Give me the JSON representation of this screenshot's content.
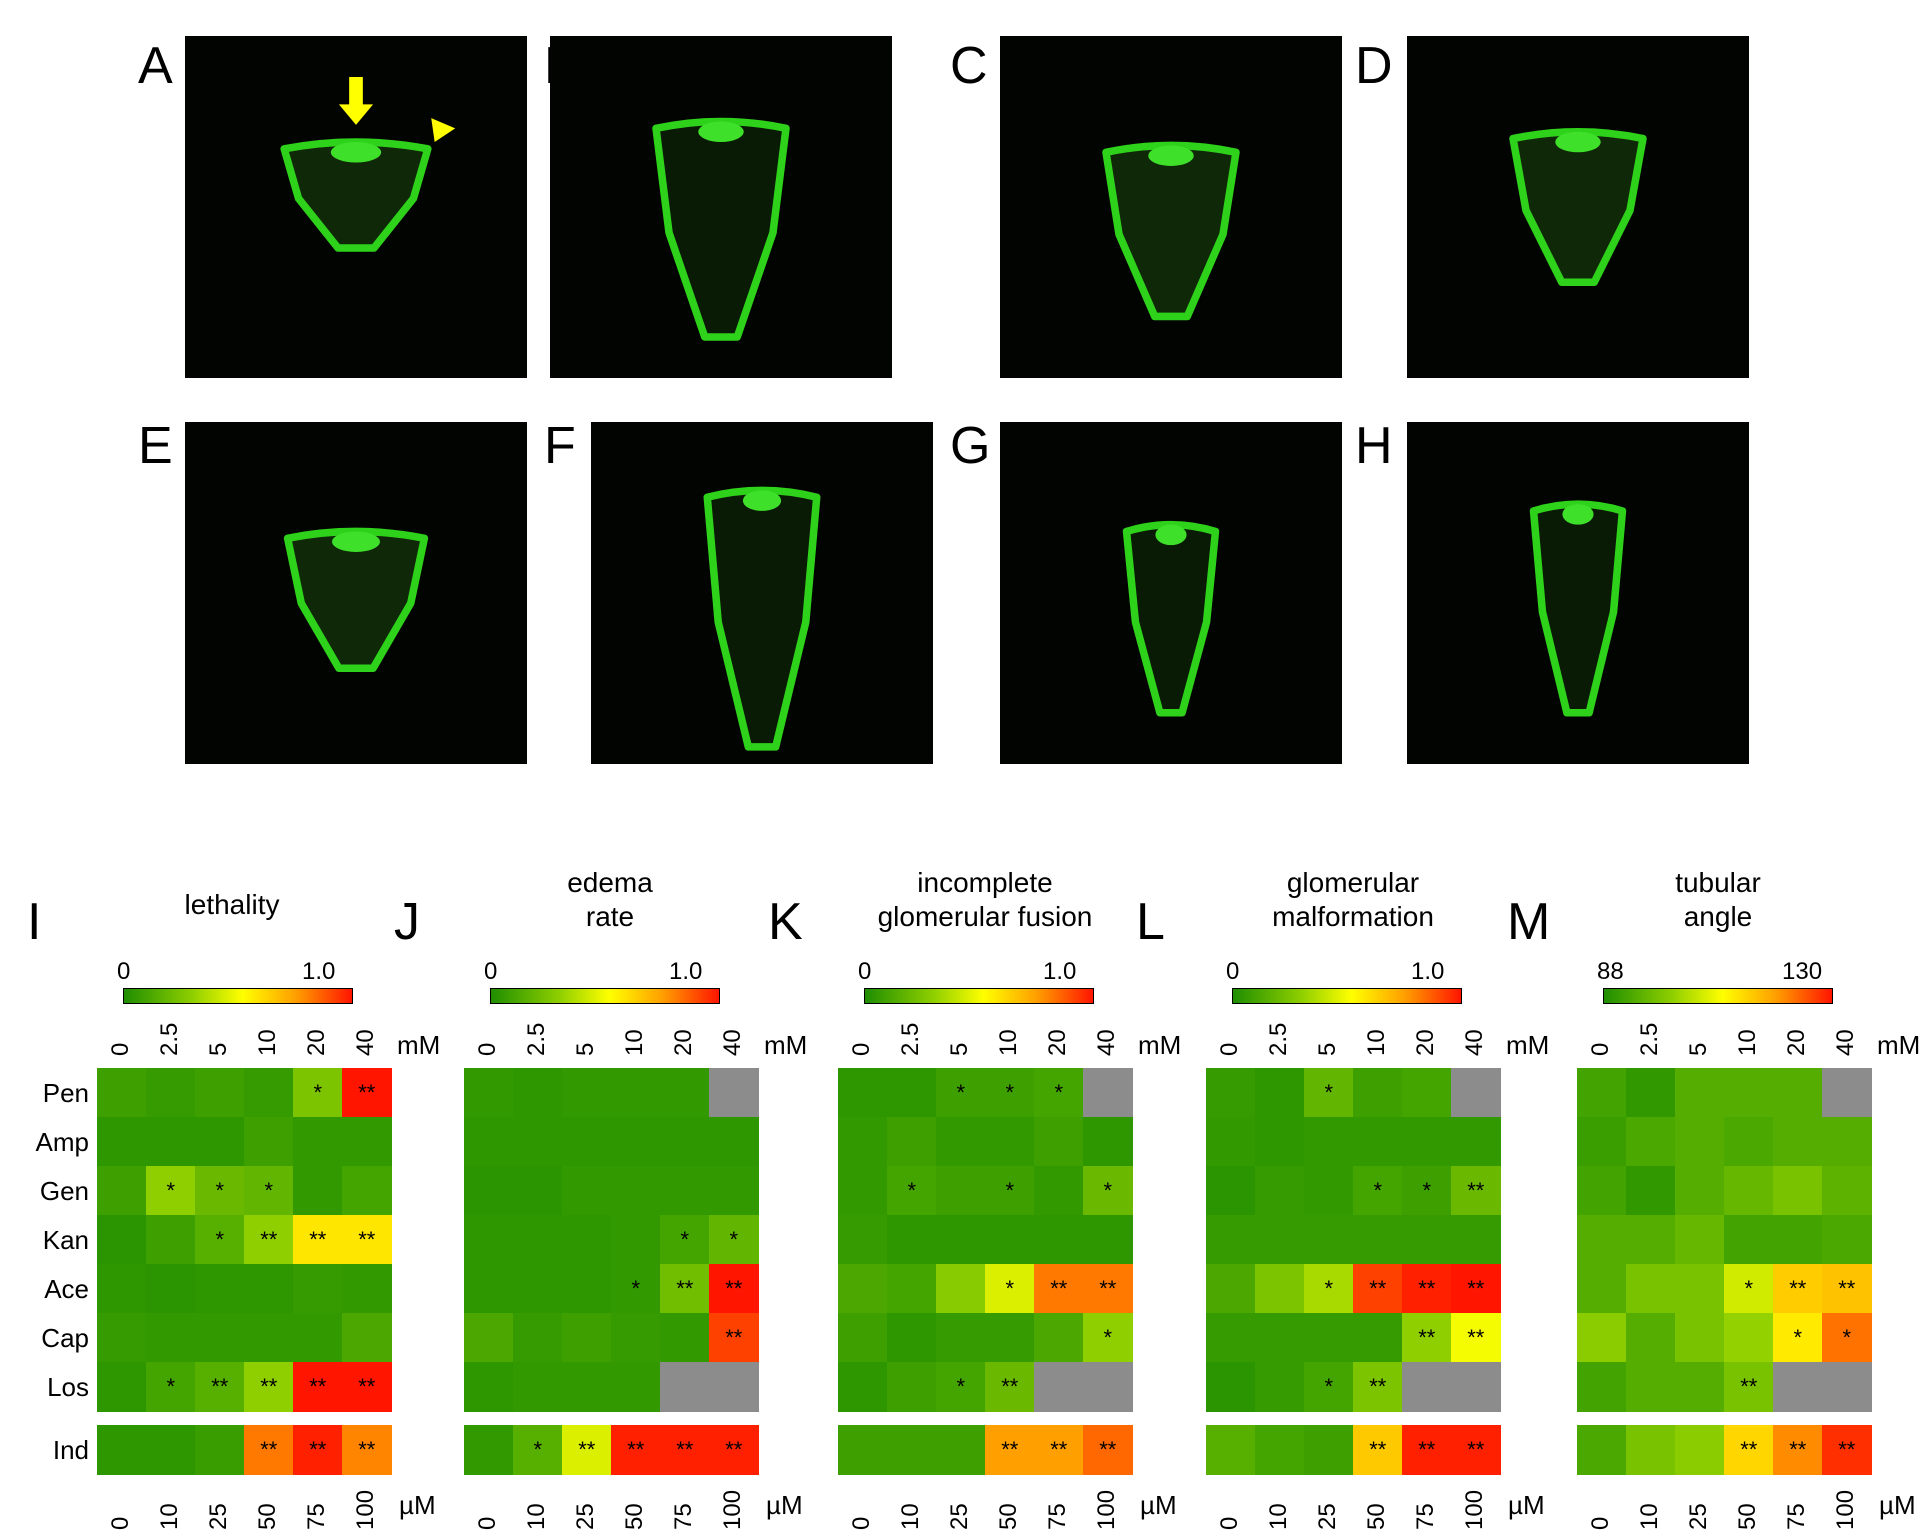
{
  "image_panels": [
    "A",
    "B",
    "C",
    "D",
    "E",
    "F",
    "G",
    "H"
  ],
  "heatmap_panels": [
    {
      "label": "I",
      "title_lines": [
        "lethality"
      ]
    },
    {
      "label": "J",
      "title_lines": [
        "edema",
        "rate"
      ]
    },
    {
      "label": "K",
      "title_lines": [
        "incomplete",
        "glomerular fusion"
      ]
    },
    {
      "label": "L",
      "title_lines": [
        "glomerular",
        "malformation"
      ]
    },
    {
      "label": "M",
      "title_lines": [
        "tubular",
        "angle"
      ]
    }
  ],
  "colorbar_labels": [
    [
      "0",
      "1.0"
    ],
    [
      "0",
      "1.0"
    ],
    [
      "0",
      "1.0"
    ],
    [
      "0",
      "1.0"
    ],
    [
      "88",
      "130"
    ]
  ],
  "colors": {
    "gray": "#8c8c8c",
    "background": "#ffffff",
    "gradient": [
      "#1f8e00",
      "#8fcf00",
      "#ffff00",
      "#ffa000",
      "#ff1500"
    ]
  },
  "arrow_color": "#ffff00",
  "mM_ticks": [
    "0",
    "2.5",
    "5",
    "10",
    "20",
    "40"
  ],
  "mM_unit": "mM",
  "uM_ticks": [
    "0",
    "10",
    "25",
    "50",
    "75",
    "100"
  ],
  "uM_unit": "µM",
  "rows": [
    "Pen",
    "Amp",
    "Gen",
    "Kan",
    "Ace",
    "Cap",
    "Los"
  ],
  "ind_row": "Ind",
  "chart_data": [
    {
      "type": "heatmap",
      "title": "lethality",
      "colorbar_range": [
        0,
        1.0
      ],
      "x_mM": [
        "0",
        "2.5",
        "5",
        "10",
        "20",
        "40"
      ],
      "x_uM": [
        "0",
        "10",
        "25",
        "50",
        "75",
        "100"
      ],
      "rows": [
        "Pen",
        "Amp",
        "Gen",
        "Kan",
        "Ace",
        "Cap",
        "Los",
        "Ind"
      ],
      "values": [
        [
          0.08,
          0.06,
          0.08,
          0.06,
          0.25,
          1.0
        ],
        [
          0.04,
          0.04,
          0.04,
          0.08,
          0.05,
          0.05
        ],
        [
          0.08,
          0.3,
          0.2,
          0.18,
          0.05,
          0.1
        ],
        [
          0.03,
          0.08,
          0.15,
          0.3,
          0.58,
          0.58
        ],
        [
          0.04,
          0.03,
          0.04,
          0.04,
          0.06,
          0.05
        ],
        [
          0.06,
          0.05,
          0.05,
          0.05,
          0.05,
          0.12
        ],
        [
          0.04,
          0.1,
          0.15,
          0.3,
          1.0,
          1.0
        ],
        [
          0.04,
          0.04,
          0.07,
          0.82,
          0.98,
          0.8
        ]
      ],
      "gray": [],
      "significance": [
        [
          "",
          "",
          "",
          "",
          "*",
          "**"
        ],
        [
          "",
          "",
          "",
          "",
          "",
          ""
        ],
        [
          "",
          "*",
          "*",
          "*",
          "",
          ""
        ],
        [
          "",
          "",
          "*",
          "**",
          "**",
          "**"
        ],
        [
          "",
          "",
          "",
          "",
          "",
          ""
        ],
        [
          "",
          "",
          "",
          "",
          "",
          ""
        ],
        [
          "",
          "*",
          "**",
          "**",
          "**",
          "**"
        ],
        [
          "",
          "",
          "",
          "**",
          "**",
          "**"
        ]
      ]
    },
    {
      "type": "heatmap",
      "title": "edema rate",
      "colorbar_range": [
        0,
        1.0
      ],
      "x_mM": [
        "0",
        "2.5",
        "5",
        "10",
        "20",
        "40"
      ],
      "x_uM": [
        "0",
        "10",
        "25",
        "50",
        "75",
        "100"
      ],
      "rows": [
        "Pen",
        "Amp",
        "Gen",
        "Kan",
        "Ace",
        "Cap",
        "Los",
        "Ind"
      ],
      "values": [
        [
          0.05,
          0.04,
          0.05,
          0.05,
          0.05,
          null
        ],
        [
          0.04,
          0.04,
          0.04,
          0.04,
          0.04,
          0.04
        ],
        [
          0.03,
          0.03,
          0.05,
          0.05,
          0.05,
          0.05
        ],
        [
          0.04,
          0.04,
          0.04,
          0.05,
          0.1,
          0.18
        ],
        [
          0.04,
          0.04,
          0.04,
          0.05,
          0.22,
          1.0
        ],
        [
          0.12,
          0.06,
          0.08,
          0.06,
          0.05,
          0.92
        ],
        [
          0.04,
          0.05,
          0.05,
          0.05,
          null,
          null
        ],
        [
          0.05,
          0.15,
          0.45,
          0.98,
          0.98,
          0.98
        ]
      ],
      "gray": [
        [
          0,
          5
        ],
        [
          6,
          4
        ],
        [
          6,
          5
        ]
      ],
      "significance": [
        [
          "",
          "",
          "",
          "",
          "",
          ""
        ],
        [
          "",
          "",
          "",
          "",
          "",
          ""
        ],
        [
          "",
          "",
          "",
          "",
          "",
          ""
        ],
        [
          "",
          "",
          "",
          "",
          "*",
          "*"
        ],
        [
          "",
          "",
          "",
          "*",
          "**",
          "**"
        ],
        [
          "",
          "",
          "",
          "",
          "",
          "**"
        ],
        [
          "",
          "",
          "",
          "",
          "",
          ""
        ],
        [
          "",
          "*",
          "**",
          "**",
          "**",
          "**"
        ]
      ]
    },
    {
      "type": "heatmap",
      "title": "incomplete glomerular fusion",
      "colorbar_range": [
        0,
        1.0
      ],
      "x_mM": [
        "0",
        "2.5",
        "5",
        "10",
        "20",
        "40"
      ],
      "x_uM": [
        "0",
        "10",
        "25",
        "50",
        "75",
        "100"
      ],
      "rows": [
        "Pen",
        "Amp",
        "Gen",
        "Kan",
        "Ace",
        "Cap",
        "Los",
        "Ind"
      ],
      "values": [
        [
          0.04,
          0.04,
          0.08,
          0.08,
          0.1,
          null
        ],
        [
          0.05,
          0.08,
          0.05,
          0.05,
          0.08,
          0.04
        ],
        [
          0.05,
          0.1,
          0.08,
          0.08,
          0.05,
          0.2
        ],
        [
          0.06,
          0.04,
          0.04,
          0.04,
          0.04,
          0.04
        ],
        [
          0.12,
          0.1,
          0.28,
          0.45,
          0.82,
          0.82
        ],
        [
          0.08,
          0.04,
          0.06,
          0.06,
          0.12,
          0.3
        ],
        [
          0.04,
          0.08,
          0.1,
          0.2,
          null,
          null
        ],
        [
          0.08,
          0.08,
          0.08,
          0.75,
          0.75,
          0.85
        ]
      ],
      "gray": [
        [
          0,
          5
        ],
        [
          6,
          4
        ],
        [
          6,
          5
        ]
      ],
      "significance": [
        [
          "",
          "",
          "*",
          "*",
          "*",
          ""
        ],
        [
          "",
          "",
          "",
          "",
          "",
          ""
        ],
        [
          "",
          "*",
          "",
          "*",
          "",
          "*"
        ],
        [
          "",
          "",
          "",
          "",
          "",
          ""
        ],
        [
          "",
          "",
          "",
          "*",
          "**",
          "**"
        ],
        [
          "",
          "",
          "",
          "",
          "",
          "*"
        ],
        [
          "",
          "",
          "*",
          "**",
          "",
          ""
        ],
        [
          "",
          "",
          "",
          "**",
          "**",
          "**"
        ]
      ]
    },
    {
      "type": "heatmap",
      "title": "glomerular malformation",
      "colorbar_range": [
        0,
        1.0
      ],
      "x_mM": [
        "0",
        "2.5",
        "5",
        "10",
        "20",
        "40"
      ],
      "x_uM": [
        "0",
        "10",
        "25",
        "50",
        "75",
        "100"
      ],
      "rows": [
        "Pen",
        "Amp",
        "Gen",
        "Kan",
        "Ace",
        "Cap",
        "Los",
        "Ind"
      ],
      "values": [
        [
          0.06,
          0.04,
          0.18,
          0.08,
          0.1,
          null
        ],
        [
          0.05,
          0.04,
          0.05,
          0.05,
          0.05,
          0.05
        ],
        [
          0.03,
          0.06,
          0.05,
          0.1,
          0.08,
          0.2
        ],
        [
          0.06,
          0.06,
          0.06,
          0.06,
          0.06,
          0.06
        ],
        [
          0.12,
          0.25,
          0.35,
          0.92,
          0.98,
          1.0
        ],
        [
          0.06,
          0.06,
          0.06,
          0.06,
          0.3,
          0.5
        ],
        [
          0.03,
          0.06,
          0.1,
          0.25,
          null,
          null
        ],
        [
          0.15,
          0.1,
          0.08,
          0.65,
          0.98,
          0.98
        ]
      ],
      "gray": [
        [
          0,
          5
        ],
        [
          6,
          4
        ],
        [
          6,
          5
        ]
      ],
      "significance": [
        [
          "",
          "",
          "*",
          "",
          "",
          ""
        ],
        [
          "",
          "",
          "",
          "",
          "",
          ""
        ],
        [
          "",
          "",
          "",
          "*",
          "*",
          "**"
        ],
        [
          "",
          "",
          "",
          "",
          "",
          ""
        ],
        [
          "",
          "",
          "*",
          "**",
          "**",
          "**"
        ],
        [
          "",
          "",
          "",
          "",
          "**",
          "**"
        ],
        [
          "",
          "",
          "*",
          "**",
          "",
          ""
        ],
        [
          "",
          "",
          "",
          "**",
          "**",
          "**"
        ]
      ]
    },
    {
      "type": "heatmap",
      "title": "tubular angle",
      "colorbar_range": [
        88,
        130
      ],
      "x_mM": [
        "0",
        "2.5",
        "5",
        "10",
        "20",
        "40"
      ],
      "x_uM": [
        "0",
        "10",
        "25",
        "50",
        "75",
        "100"
      ],
      "rows": [
        "Pen",
        "Amp",
        "Gen",
        "Kan",
        "Ace",
        "Cap",
        "Los",
        "Ind"
      ],
      "values": [
        [
          92,
          90,
          94,
          94,
          94,
          null
        ],
        [
          91,
          93,
          94,
          93,
          94,
          94
        ],
        [
          92,
          90,
          94,
          96,
          98,
          95
        ],
        [
          94,
          94,
          96,
          92,
          92,
          93
        ],
        [
          94,
          98,
          98,
          106,
          115,
          116
        ],
        [
          100,
          94,
          98,
          101,
          112,
          123
        ],
        [
          92,
          94,
          94,
          98,
          null,
          null
        ],
        [
          93,
          98,
          100,
          114,
          121,
          128
        ]
      ],
      "gray": [
        [
          0,
          5
        ],
        [
          6,
          4
        ],
        [
          6,
          5
        ]
      ],
      "significance": [
        [
          "",
          "",
          "",
          "",
          "",
          ""
        ],
        [
          "",
          "",
          "",
          "",
          "",
          ""
        ],
        [
          "",
          "",
          "",
          "",
          "",
          ""
        ],
        [
          "",
          "",
          "",
          "",
          "",
          ""
        ],
        [
          "",
          "",
          "",
          "*",
          "**",
          "**"
        ],
        [
          "",
          "",
          "",
          "",
          "*",
          "*"
        ],
        [
          "",
          "",
          "",
          "**",
          "",
          ""
        ],
        [
          "",
          "",
          "",
          "**",
          "**",
          "**"
        ]
      ]
    }
  ]
}
